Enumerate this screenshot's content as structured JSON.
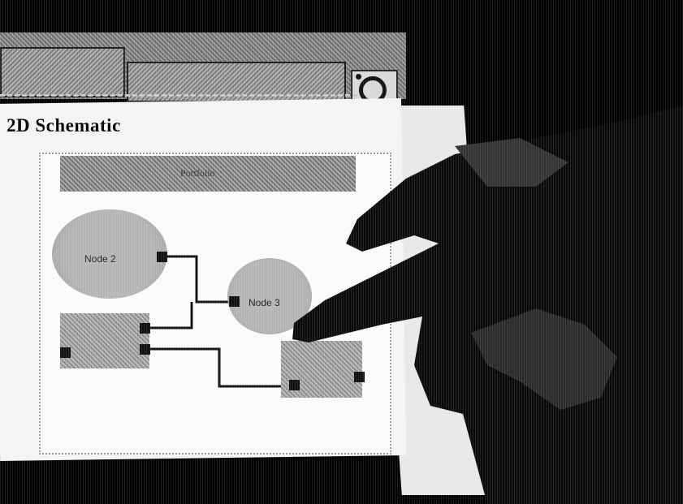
{
  "page": {
    "title": "2D Schematic",
    "panel_header_label": "Portfolio",
    "nodes": {
      "circle_large_label": "Node 2",
      "circle_small_label": "Node 3"
    },
    "toolbar": {
      "logo_icon": "logo-icon"
    }
  }
}
